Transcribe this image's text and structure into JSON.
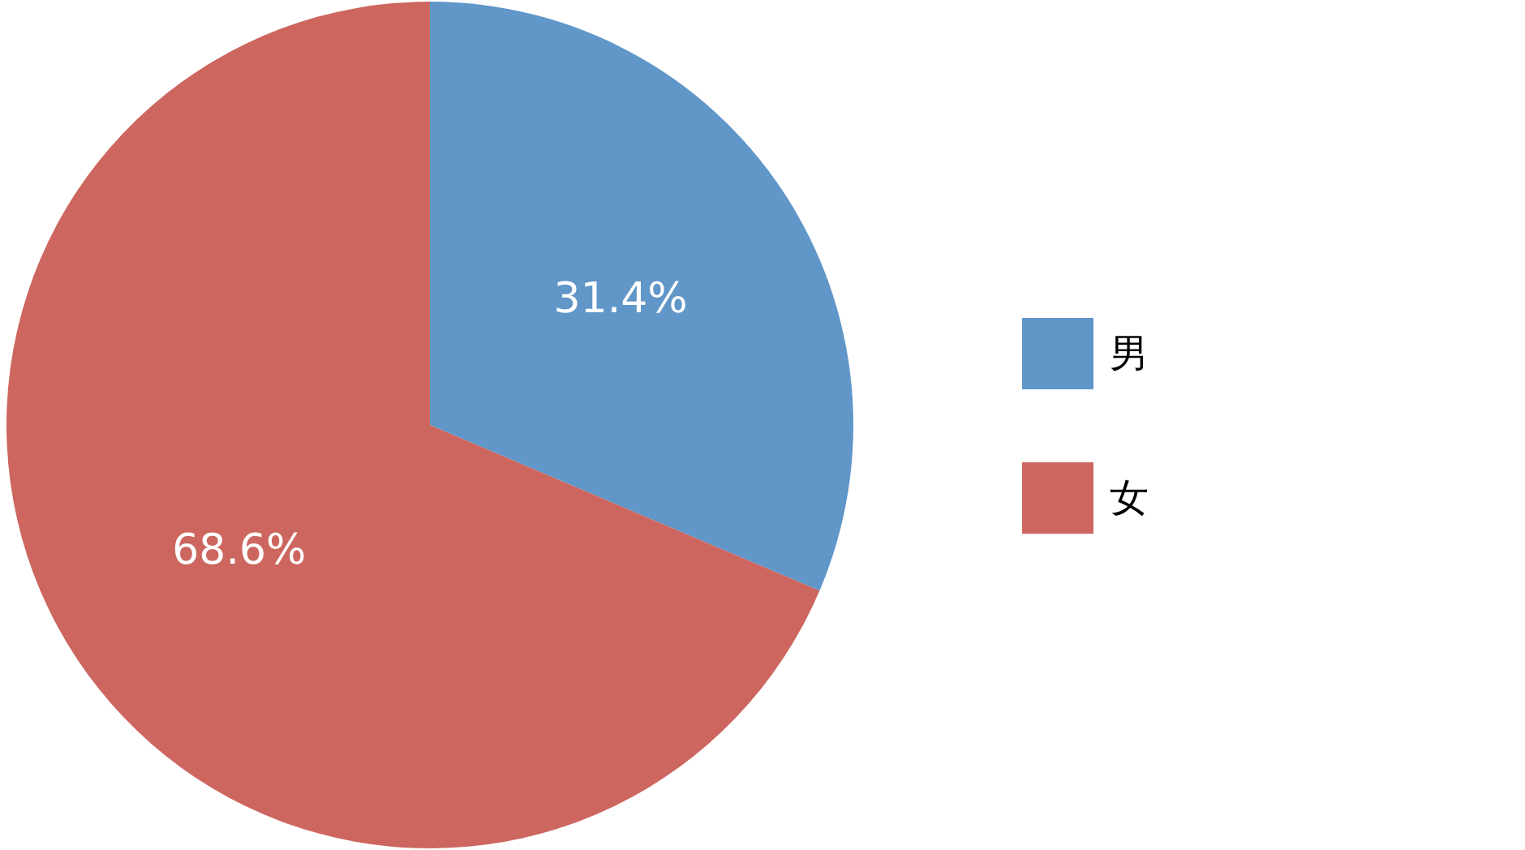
{
  "chart_data": {
    "type": "pie",
    "categories": [
      "男",
      "女"
    ],
    "values": [
      31.4,
      68.6
    ],
    "colors": [
      "#6096c8",
      "#cc665e"
    ],
    "value_labels": [
      "31.4%",
      "68.6%"
    ],
    "legend": "right"
  }
}
